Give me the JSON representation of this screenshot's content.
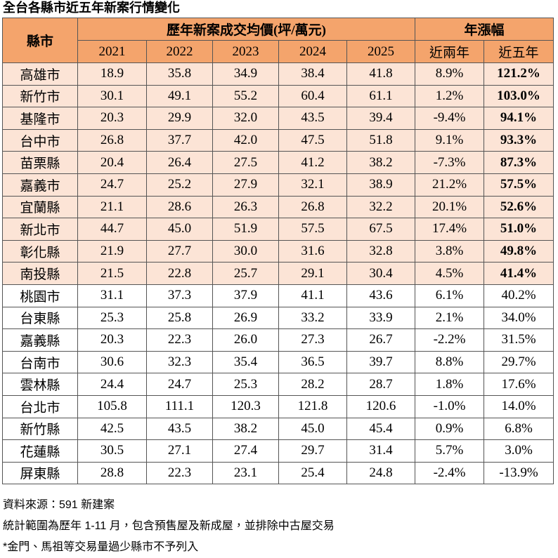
{
  "title": "全台各縣市近五年新案行情變化",
  "table": {
    "header": {
      "city": "縣市",
      "price_group": "歷年新案成交均價(坪/萬元)",
      "years": [
        "2021",
        "2022",
        "2023",
        "2024",
        "2025"
      ],
      "growth_group": "年漲幅",
      "growth": [
        "近兩年",
        "近五年"
      ]
    },
    "rows": [
      [
        "高雄市",
        "18.9",
        "35.8",
        "34.9",
        "38.4",
        "41.8",
        "8.9%",
        "121.2%"
      ],
      [
        "新竹市",
        "30.1",
        "49.1",
        "55.2",
        "60.4",
        "61.1",
        "1.2%",
        "103.0%"
      ],
      [
        "基隆市",
        "20.3",
        "29.9",
        "32.0",
        "43.5",
        "39.4",
        "-9.4%",
        "94.1%"
      ],
      [
        "台中市",
        "26.8",
        "37.7",
        "42.0",
        "47.5",
        "51.8",
        "9.1%",
        "93.3%"
      ],
      [
        "苗栗縣",
        "20.4",
        "26.4",
        "27.5",
        "41.2",
        "38.2",
        "-7.3%",
        "87.3%"
      ],
      [
        "嘉義市",
        "24.7",
        "25.2",
        "27.9",
        "32.1",
        "38.9",
        "21.2%",
        "57.5%"
      ],
      [
        "宜蘭縣",
        "21.1",
        "28.6",
        "26.3",
        "26.8",
        "32.2",
        "20.1%",
        "52.6%"
      ],
      [
        "新北市",
        "44.7",
        "45.0",
        "51.9",
        "57.5",
        "67.5",
        "17.4%",
        "51.0%"
      ],
      [
        "彰化縣",
        "21.9",
        "27.7",
        "30.0",
        "31.6",
        "32.8",
        "3.8%",
        "49.8%"
      ],
      [
        "南投縣",
        "21.5",
        "22.8",
        "25.7",
        "29.1",
        "30.4",
        "4.5%",
        "41.4%"
      ],
      [
        "桃園市",
        "31.1",
        "37.3",
        "37.9",
        "41.1",
        "43.6",
        "6.1%",
        "40.2%"
      ],
      [
        "台東縣",
        "25.3",
        "25.8",
        "26.9",
        "33.2",
        "33.9",
        "2.1%",
        "34.0%"
      ],
      [
        "嘉義縣",
        "20.3",
        "22.3",
        "26.0",
        "27.3",
        "26.7",
        "-2.2%",
        "31.5%"
      ],
      [
        "台南市",
        "30.6",
        "32.3",
        "35.4",
        "36.5",
        "39.7",
        "8.8%",
        "29.7%"
      ],
      [
        "雲林縣",
        "24.4",
        "24.7",
        "25.3",
        "28.2",
        "28.7",
        "1.8%",
        "17.6%"
      ],
      [
        "台北市",
        "105.8",
        "111.1",
        "120.3",
        "121.8",
        "120.6",
        "-1.0%",
        "14.0%"
      ],
      [
        "新竹縣",
        "42.5",
        "43.5",
        "38.2",
        "45.0",
        "45.4",
        "0.9%",
        "6.8%"
      ],
      [
        "花蓮縣",
        "30.5",
        "27.1",
        "27.4",
        "29.7",
        "31.4",
        "5.7%",
        "3.0%"
      ],
      [
        "屏東縣",
        "28.8",
        "22.3",
        "23.1",
        "25.4",
        "24.8",
        "-2.4%",
        "-13.9%"
      ]
    ]
  },
  "notes": [
    "資料來源：591 新建案",
    "統計範圍為歷年 1-11 月，包含預售屋及新成屋，並排除中古屋交易",
    "*金門、馬祖等交易量過少縣市不予列入"
  ]
}
